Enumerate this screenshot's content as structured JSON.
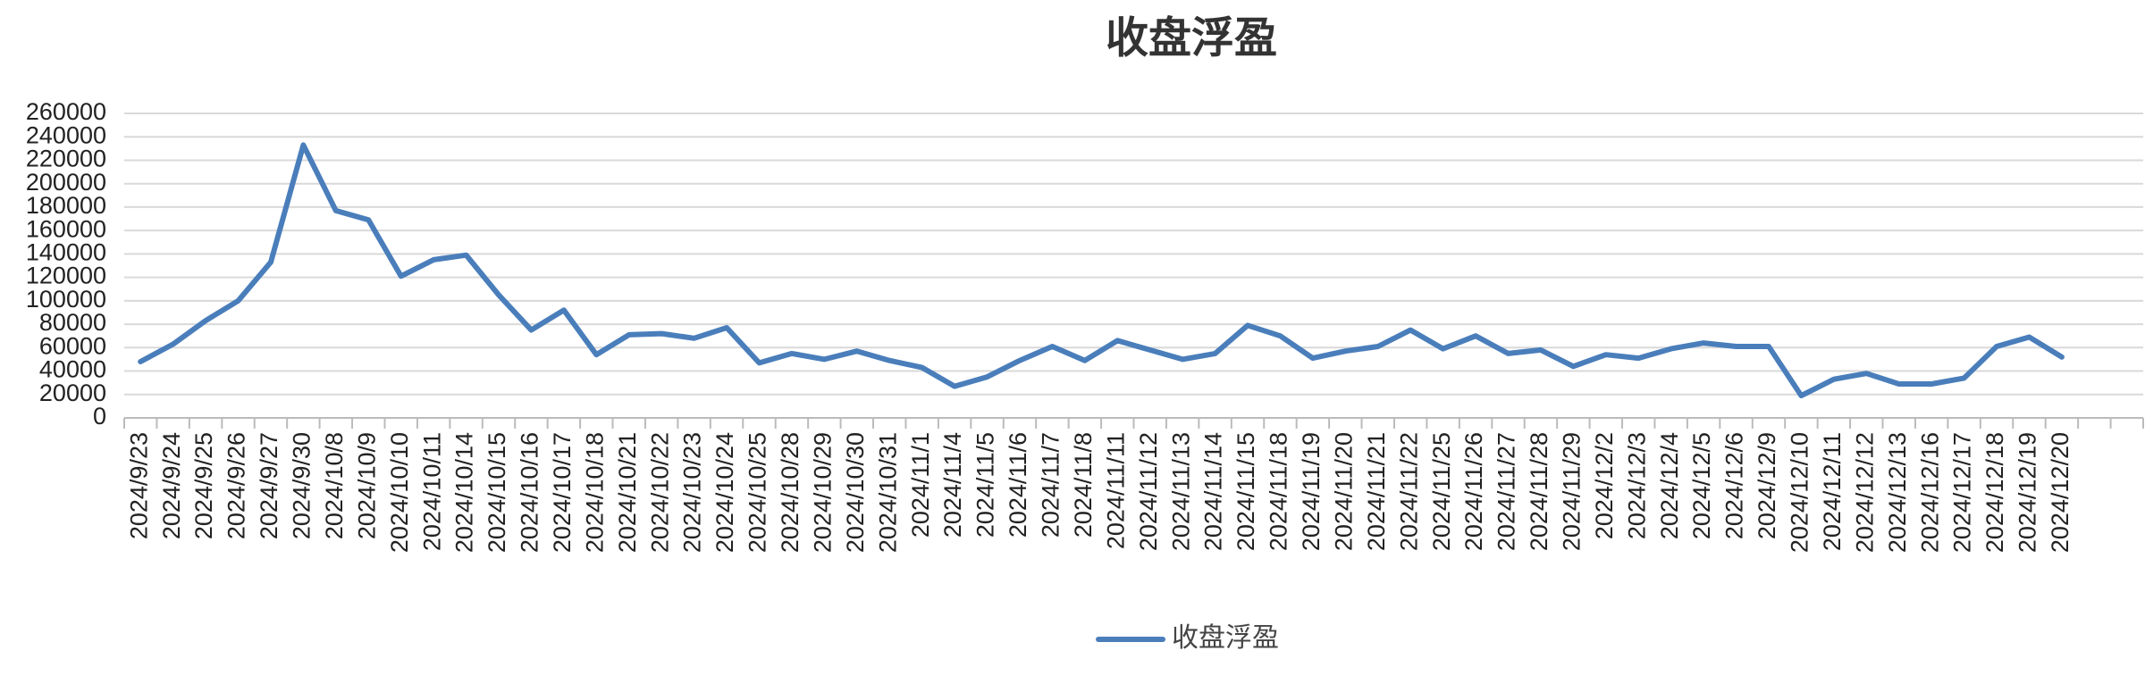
{
  "chart_data": {
    "type": "line",
    "title": "收盘浮盈",
    "categories": [
      "2024/9/23",
      "2024/9/24",
      "2024/9/25",
      "2024/9/26",
      "2024/9/27",
      "2024/9/30",
      "2024/10/8",
      "2024/10/9",
      "2024/10/10",
      "2024/10/11",
      "2024/10/14",
      "2024/10/15",
      "2024/10/16",
      "2024/10/17",
      "2024/10/18",
      "2024/10/21",
      "2024/10/22",
      "2024/10/23",
      "2024/10/24",
      "2024/10/25",
      "2024/10/28",
      "2024/10/29",
      "2024/10/30",
      "2024/10/31",
      "2024/11/1",
      "2024/11/4",
      "2024/11/5",
      "2024/11/6",
      "2024/11/7",
      "2024/11/8",
      "2024/11/11",
      "2024/11/12",
      "2024/11/13",
      "2024/11/14",
      "2024/11/15",
      "2024/11/18",
      "2024/11/19",
      "2024/11/20",
      "2024/11/21",
      "2024/11/22",
      "2024/11/25",
      "2024/11/26",
      "2024/11/27",
      "2024/11/28",
      "2024/11/29",
      "2024/12/2",
      "2024/12/3",
      "2024/12/4",
      "2024/12/5",
      "2024/12/6",
      "2024/12/9",
      "2024/12/10",
      "2024/12/11",
      "2024/12/12",
      "2024/12/13",
      "2024/12/16",
      "2024/12/17",
      "2024/12/18",
      "2024/12/19",
      "2024/12/20",
      null,
      null
    ],
    "series": [
      {
        "name": "收盘浮盈",
        "color": "#4a7ebb",
        "values": [
          48000,
          63000,
          83000,
          100000,
          133000,
          233000,
          177000,
          169000,
          121000,
          135000,
          139000,
          105000,
          75000,
          92000,
          54000,
          71000,
          72000,
          68000,
          77000,
          47000,
          55000,
          50000,
          57000,
          49000,
          43000,
          27000,
          35000,
          49000,
          61000,
          49000,
          66000,
          58000,
          50000,
          55000,
          79000,
          70000,
          51000,
          57000,
          61000,
          75000,
          59000,
          70000,
          55000,
          58000,
          44000,
          54000,
          51000,
          59000,
          64000,
          61000,
          61000,
          19000,
          33000,
          38000,
          29000,
          29000,
          34000,
          61000,
          69000,
          52000,
          null,
          null
        ]
      }
    ],
    "ylim": [
      0,
      260000
    ],
    "yticks": [
      0,
      20000,
      40000,
      60000,
      80000,
      100000,
      120000,
      140000,
      160000,
      180000,
      200000,
      220000,
      240000,
      260000
    ],
    "grid": true,
    "legend": "bottom"
  }
}
